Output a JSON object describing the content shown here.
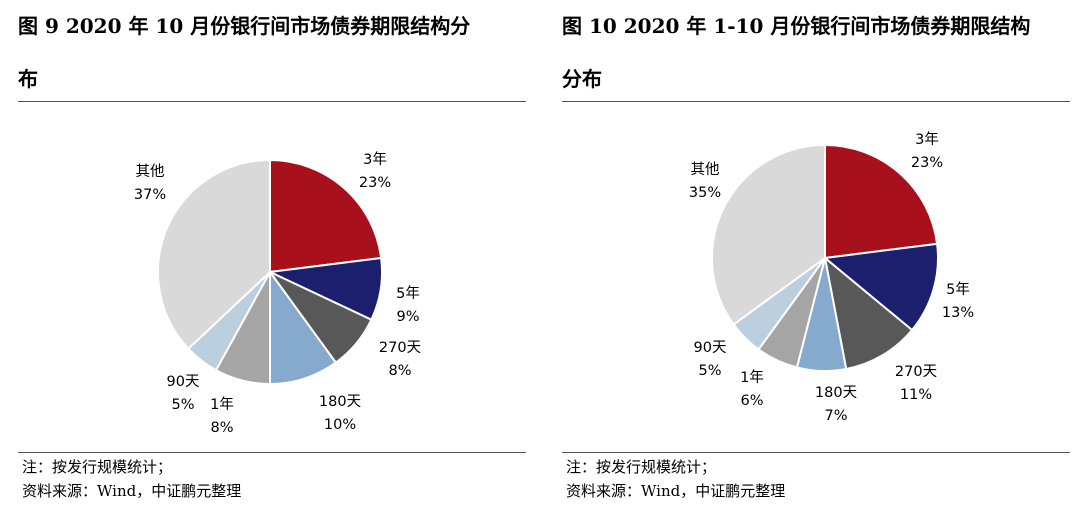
{
  "chart_data": [
    {
      "type": "pie",
      "title_line1": "图 9    2020 年 10 月份银行间市场债券期限结构分",
      "title_line2": "布",
      "note": "注：按发行规模统计；",
      "source": "资料来源：Wind，中证鹏元整理",
      "slices": [
        {
          "label": "3年",
          "value": 23,
          "pct": "23%",
          "color": "#A8101C"
        },
        {
          "label": "5年",
          "value": 9,
          "pct": "9%",
          "color": "#1C1F6E"
        },
        {
          "label": "270天",
          "value": 8,
          "pct": "8%",
          "color": "#585858"
        },
        {
          "label": "180天",
          "value": 10,
          "pct": "10%",
          "color": "#86A9CE"
        },
        {
          "label": "1年",
          "value": 8,
          "pct": "8%",
          "color": "#A5A5A5"
        },
        {
          "label": "90天",
          "value": 5,
          "pct": "5%",
          "color": "#BCCFDF"
        },
        {
          "label": "其他",
          "value": 37,
          "pct": "37%",
          "color": "#D9D9D9"
        }
      ]
    },
    {
      "type": "pie",
      "title_line1": "图 10    2020 年 1-10 月份银行间市场债券期限结构",
      "title_line2": "分布",
      "note": "注：按发行规模统计；",
      "source": "资料来源：Wind，中证鹏元整理",
      "slices": [
        {
          "label": "3年",
          "value": 23,
          "pct": "23%",
          "color": "#A8101C"
        },
        {
          "label": "5年",
          "value": 13,
          "pct": "13%",
          "color": "#1C1F6E"
        },
        {
          "label": "270天",
          "value": 11,
          "pct": "11%",
          "color": "#585858"
        },
        {
          "label": "180天",
          "value": 7,
          "pct": "7%",
          "color": "#86A9CE"
        },
        {
          "label": "1年",
          "value": 6,
          "pct": "6%",
          "color": "#A5A5A5"
        },
        {
          "label": "90天",
          "value": 5,
          "pct": "5%",
          "color": "#BCCFDF"
        },
        {
          "label": "其他",
          "value": 35,
          "pct": "35%",
          "color": "#D9D9D9"
        }
      ]
    }
  ]
}
